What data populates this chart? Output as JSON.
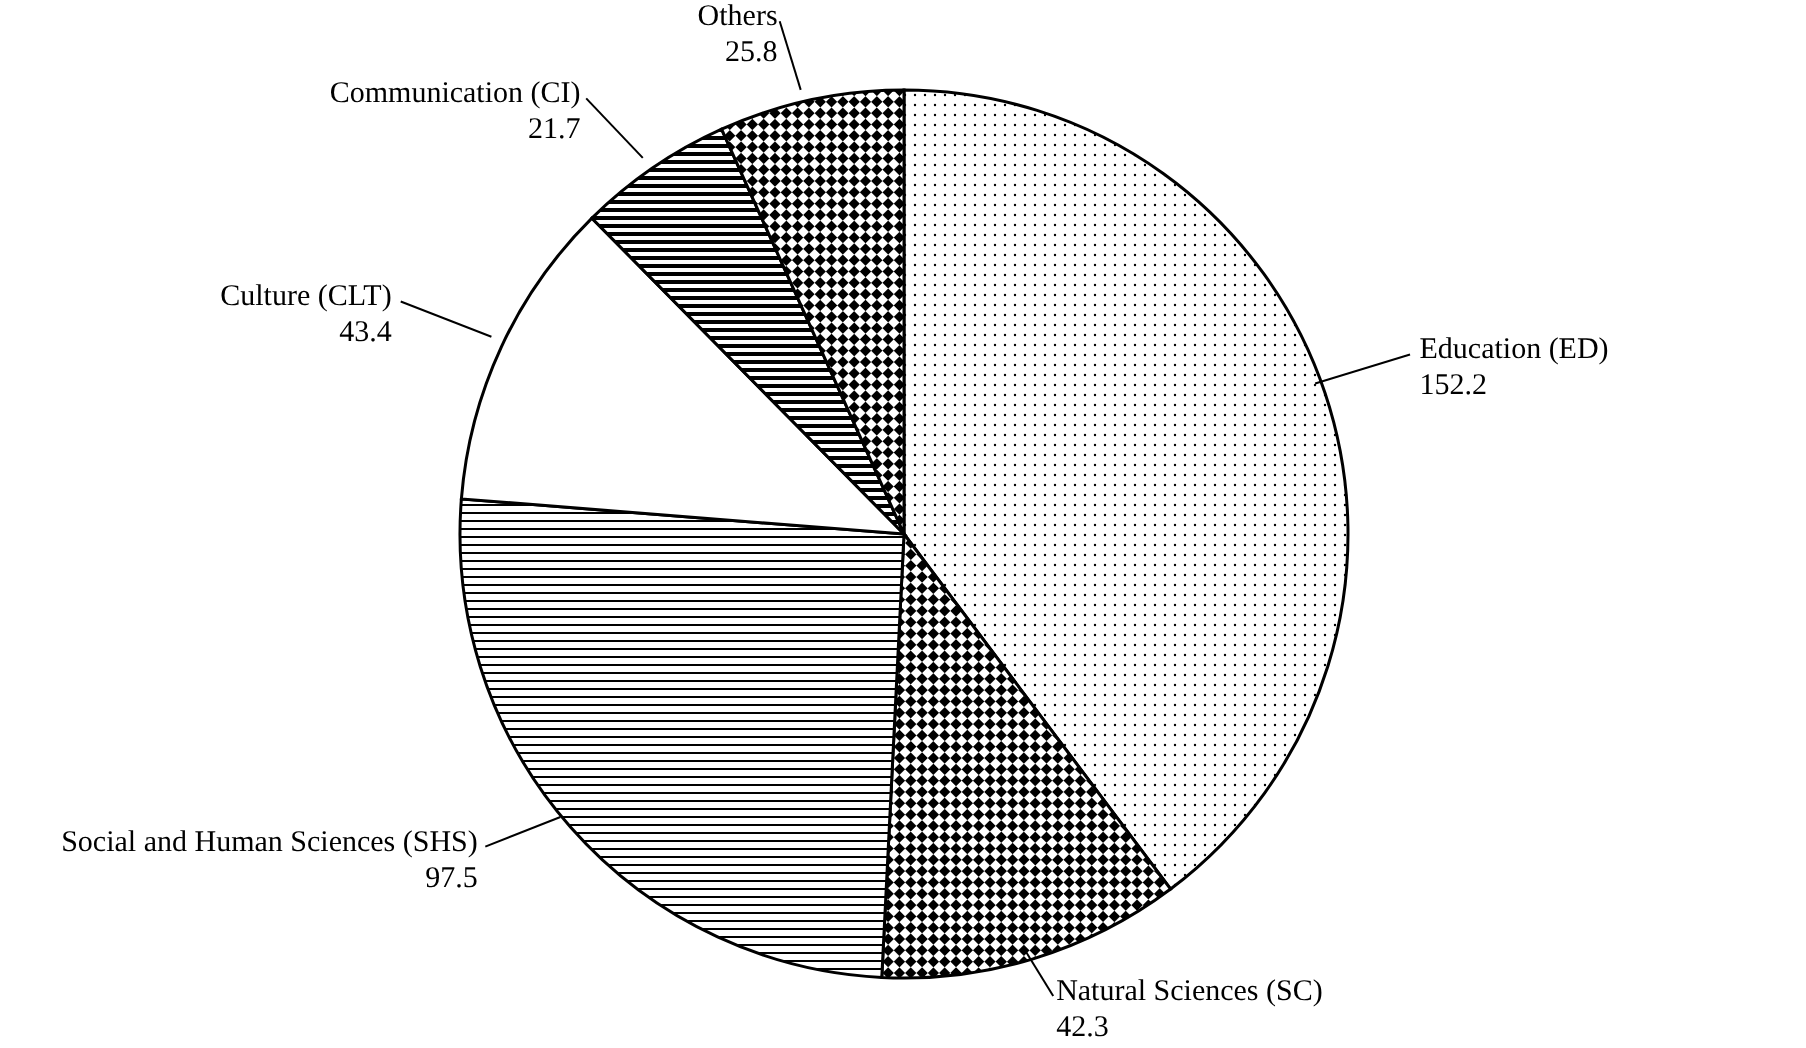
{
  "chart_data": {
    "type": "pie",
    "categories": [
      "Education (ED)",
      "Natural Sciences (SC)",
      "Social and Human Sciences (SHS)",
      "Culture (CLT)",
      "Communication (CI)",
      "Others"
    ],
    "values": [
      152.2,
      42.3,
      97.5,
      43.4,
      21.7,
      25.8
    ],
    "colors": [
      "#000000",
      "#000000",
      "#000000",
      "#000000",
      "#000000",
      "#000000"
    ],
    "data_labels": true,
    "legend": false
  }
}
